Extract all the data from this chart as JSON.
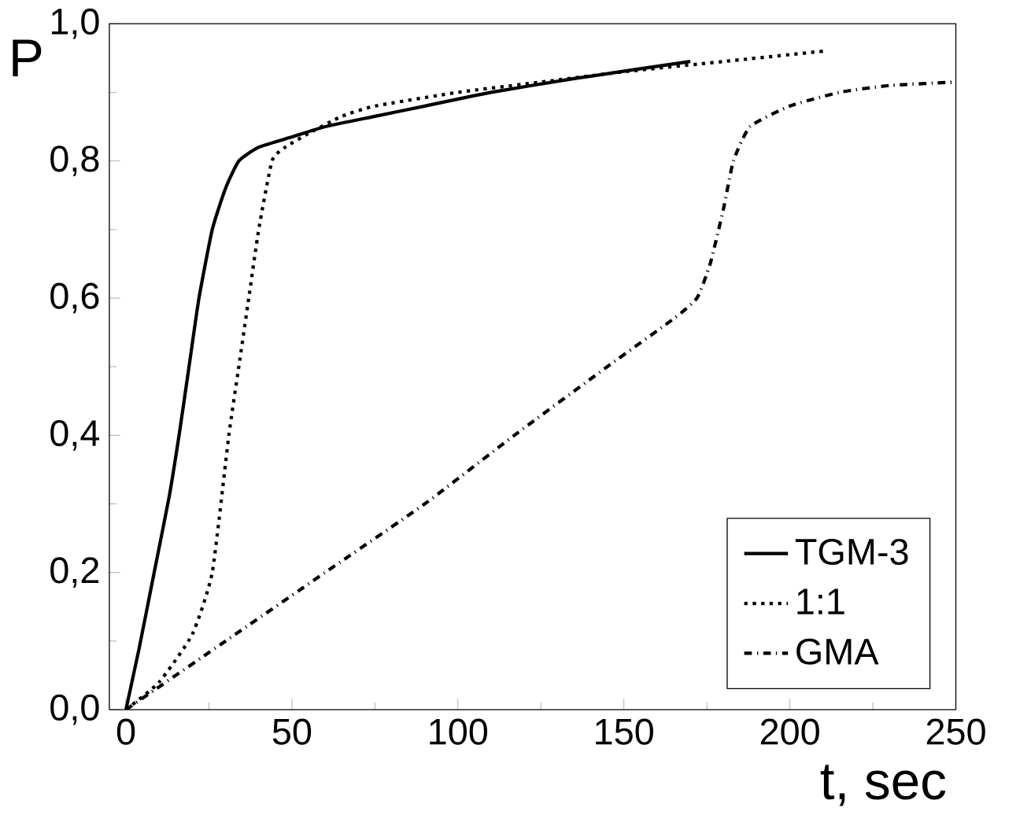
{
  "chart_data": {
    "type": "line",
    "xlabel": "t, sec",
    "ylabel": "P",
    "xlim": [
      -5,
      250
    ],
    "ylim": [
      0,
      1.0
    ],
    "xticks": [
      0,
      50,
      100,
      150,
      200,
      250
    ],
    "yticks": [
      {
        "value": 0,
        "label": "0,0"
      },
      {
        "value": 0.2,
        "label": "0,2"
      },
      {
        "value": 0.4,
        "label": "0,4"
      },
      {
        "value": 0.6,
        "label": "0,6"
      },
      {
        "value": 0.8,
        "label": "0,8"
      },
      {
        "value": 1.0,
        "label": "1,0"
      }
    ],
    "legend": "bottom right",
    "series": [
      {
        "name": "TGM-3",
        "color": "#000000",
        "line_style": "solid",
        "x": [
          0,
          4,
          8.5,
          13,
          16,
          19,
          22,
          26,
          30,
          34,
          40,
          50,
          60,
          75,
          90,
          110,
          135,
          170
        ],
        "values": [
          0,
          0.09,
          0.2,
          0.31,
          0.4,
          0.5,
          0.6,
          0.7,
          0.76,
          0.8,
          0.82,
          0.835,
          0.85,
          0.865,
          0.88,
          0.9,
          0.92,
          0.945
        ]
      },
      {
        "name": "1:1",
        "color": "#000000",
        "line_style": "dotted",
        "x": [
          0,
          10,
          20,
          26,
          31,
          34,
          37,
          40,
          44,
          48,
          55,
          65,
          75,
          100,
          125,
          150,
          180,
          210
        ],
        "values": [
          0,
          0.04,
          0.11,
          0.2,
          0.4,
          0.5,
          0.6,
          0.7,
          0.8,
          0.82,
          0.84,
          0.865,
          0.88,
          0.9,
          0.915,
          0.93,
          0.945,
          0.96
        ]
      },
      {
        "name": "GMA",
        "color": "#000000",
        "line_style": "dashdotted",
        "x": [
          0,
          30,
          60,
          90,
          117,
          145,
          165,
          172,
          176,
          180,
          183,
          188,
          200,
          215,
          230,
          250
        ],
        "values": [
          0,
          0.1,
          0.2,
          0.3,
          0.4,
          0.5,
          0.57,
          0.6,
          0.65,
          0.73,
          0.8,
          0.85,
          0.88,
          0.9,
          0.91,
          0.915
        ]
      }
    ]
  }
}
